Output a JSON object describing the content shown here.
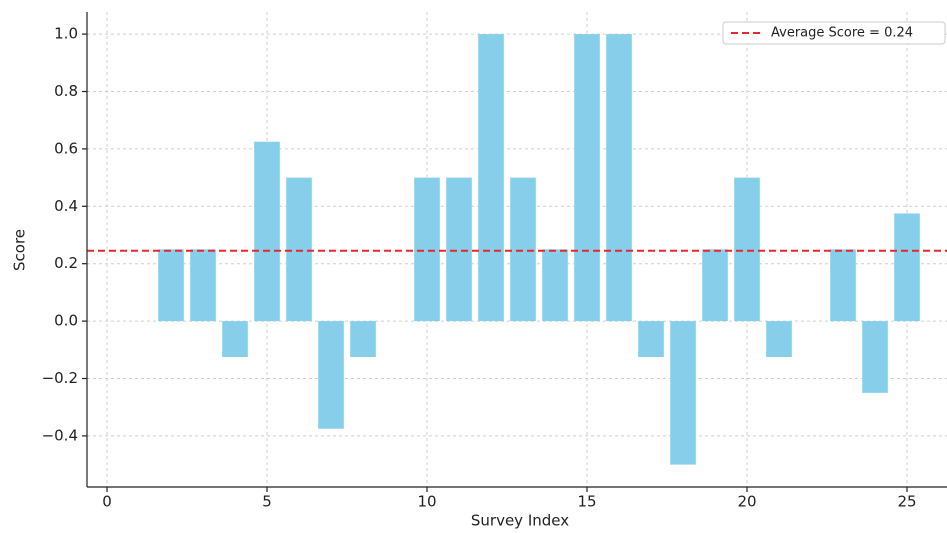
{
  "chart_data": {
    "type": "bar",
    "x": [
      1,
      2,
      3,
      4,
      5,
      6,
      7,
      8,
      9,
      10,
      11,
      12,
      13,
      14,
      15,
      16,
      17,
      18,
      19,
      20,
      21,
      22,
      23,
      24,
      25
    ],
    "values": [
      0,
      0.25,
      0.25,
      -0.125,
      0.625,
      0.5,
      -0.375,
      -0.125,
      0,
      0.5,
      0.5,
      1.0,
      0.5,
      0.25,
      1.0,
      1.0,
      -0.125,
      -0.5,
      0.25,
      0.5,
      -0.125,
      0,
      0.25,
      -0.25,
      0.375
    ],
    "color": "#87ceeb",
    "xlabel": "Survey Index",
    "ylabel": "Score",
    "xlim": [
      -0.625,
      26.25
    ],
    "xticks": [
      0,
      5,
      10,
      15,
      20,
      25
    ],
    "ylim": [
      -0.578,
      1.077
    ],
    "yticks": [
      {
        "value": -0.4,
        "label": "−0.4"
      },
      {
        "value": -0.2,
        "label": "−0.2"
      },
      {
        "value": 0,
        "label": "0.0"
      },
      {
        "value": 0.2,
        "label": "0.2"
      },
      {
        "value": 0.4,
        "label": "0.4"
      },
      {
        "value": 0.6,
        "label": "0.6"
      },
      {
        "value": 0.8,
        "label": "0.8"
      },
      {
        "value": 1.0,
        "label": "1.0"
      }
    ],
    "grid": true,
    "average_line": {
      "label": "Average Score = 0.24",
      "value": 0.245,
      "color": "#e8262b"
    },
    "legend": "upper right"
  }
}
